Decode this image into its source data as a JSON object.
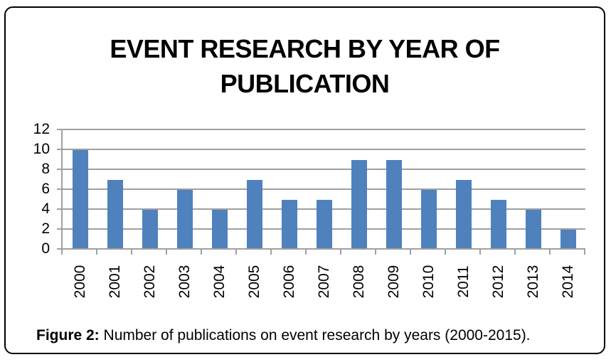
{
  "figure": {
    "caption_label": "Figure 2:",
    "caption_text": " Number of publications on event research by years (2000-2015)."
  },
  "chart_data": {
    "type": "bar",
    "title": "EVENT RESEARCH BY YEAR OF PUBLICATION",
    "categories": [
      "2000",
      "2001",
      "2002",
      "2003",
      "2004",
      "2005",
      "2006",
      "2007",
      "2008",
      "2009",
      "2010",
      "2011",
      "2012",
      "2013",
      "2014"
    ],
    "values": [
      10,
      7,
      4,
      6,
      4,
      7,
      5,
      5,
      9,
      9,
      6,
      7,
      5,
      4,
      2
    ],
    "xlabel": "",
    "ylabel": "",
    "ylim": [
      0,
      12
    ],
    "yticks": [
      0,
      2,
      4,
      6,
      8,
      10,
      12
    ],
    "grid": true,
    "legend": false,
    "bar_color": "#4F81BD",
    "grid_color": "#A0A0A0",
    "axis_color": "#A0A0A0",
    "text_color": "#000000"
  }
}
